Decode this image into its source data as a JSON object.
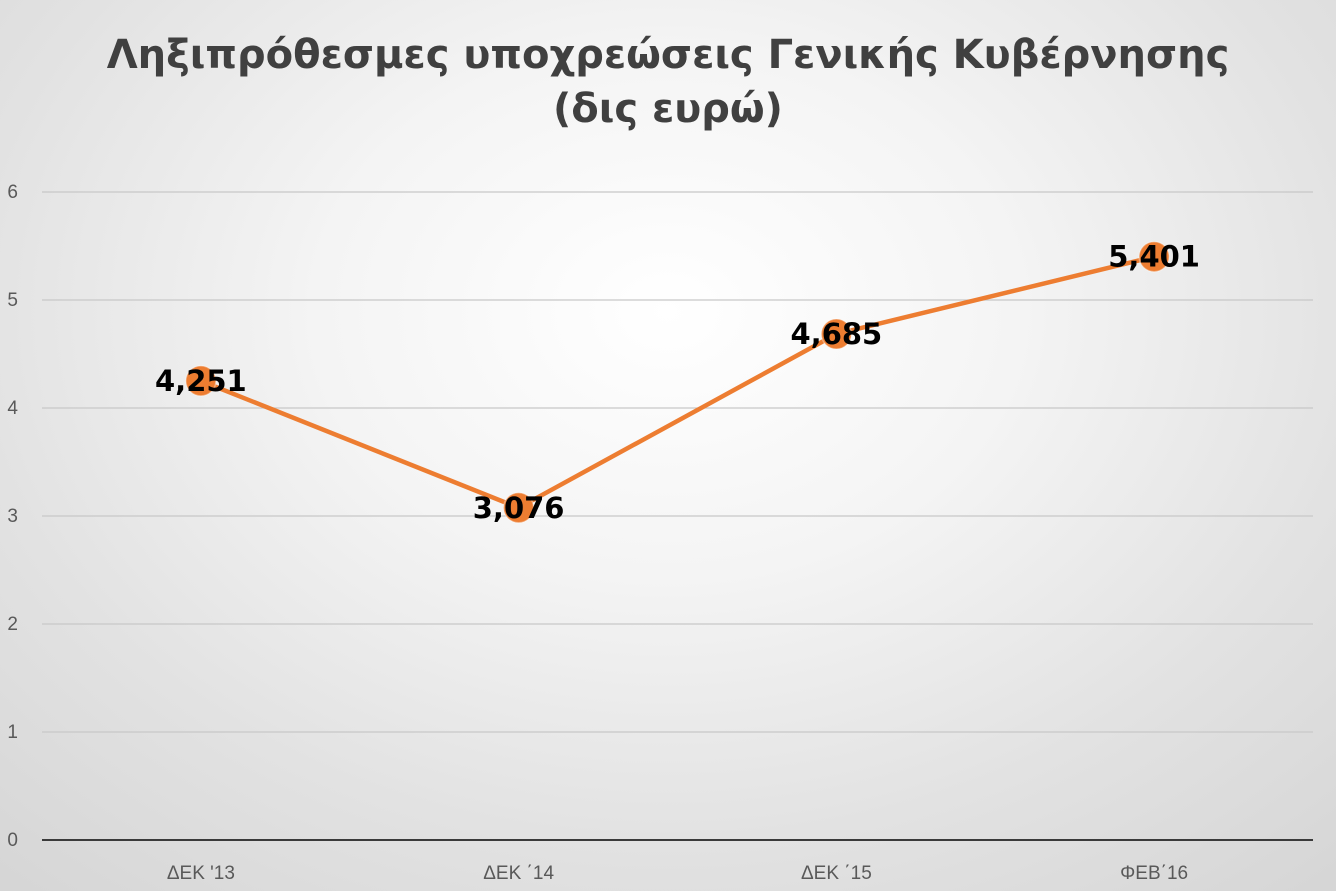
{
  "chart_data": {
    "type": "line",
    "title_lines": [
      "Ληξιπρόθεσμες υποχρεώσεις Γενικής Κυβέρνησης",
      "(δις ευρώ)"
    ],
    "categories": [
      "ΔΕΚ '13",
      "ΔΕΚ ΄14",
      "ΔΕΚ ΄15",
      "ΦΕΒ΄16"
    ],
    "series": [
      {
        "values": [
          4.251,
          3.076,
          4.685,
          5.401
        ],
        "labels": [
          "4,251",
          "3,076",
          "4,685",
          "5,401"
        ]
      }
    ],
    "y_ticks": [
      "0",
      "1",
      "2",
      "3",
      "4",
      "5",
      "6"
    ],
    "ylim": [
      0,
      6
    ],
    "grid": true,
    "legend": "none",
    "colors": {
      "line": "#ED7D31",
      "marker": "#ED7D31",
      "gridline": "#c8c8c8",
      "axis": "#3a3a3a"
    }
  }
}
